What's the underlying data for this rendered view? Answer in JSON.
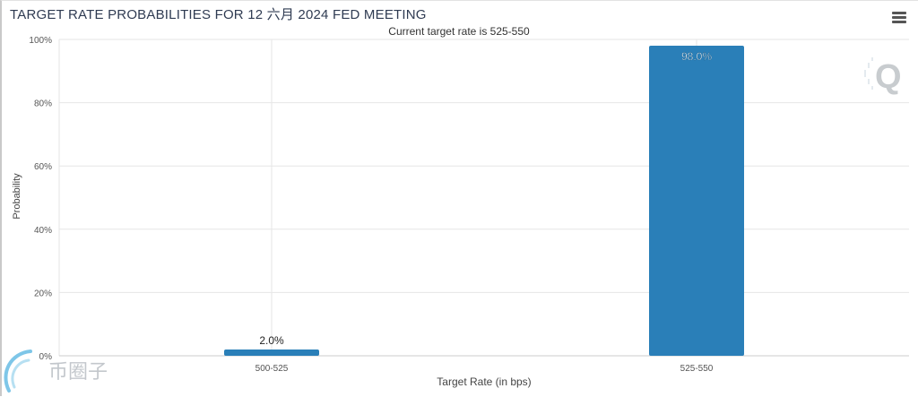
{
  "chart_data": {
    "type": "bar",
    "title": "TARGET RATE PROBABILITIES FOR 12 六月 2024 FED MEETING",
    "subtitle": "Current target rate is 525-550",
    "xlabel": "Target Rate (in bps)",
    "ylabel": "Probability",
    "categories": [
      "500-525",
      "525-550"
    ],
    "values": [
      2.0,
      98.0
    ],
    "value_labels": [
      "2.0%",
      "98.0%"
    ],
    "ylim": [
      0,
      100
    ],
    "y_ticks": [
      0,
      20,
      40,
      60,
      80,
      100
    ],
    "y_tick_labels": [
      "0%",
      "20%",
      "40%",
      "60%",
      "80%",
      "100%"
    ],
    "bar_color": "#2a7fb8",
    "grid": true,
    "legend": "none"
  },
  "logo_icon": "q-logo-icon",
  "menu_icon": "hamburger-menu-icon",
  "watermark_text": "币圈子"
}
